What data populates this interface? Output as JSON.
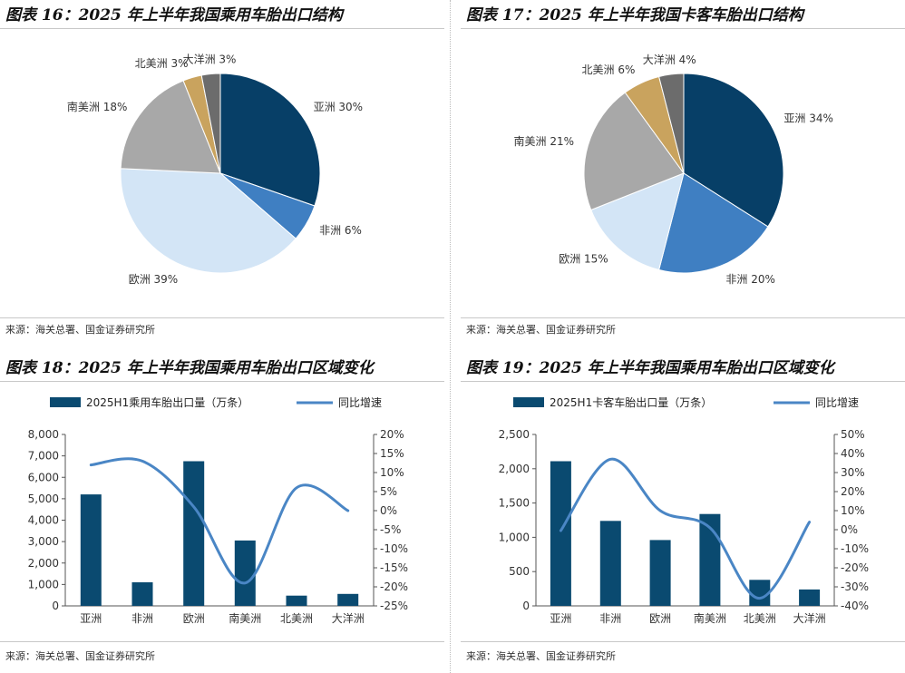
{
  "charts": [
    {
      "title": "图表 16：2025 年上半年我国乘用车胎出口结构",
      "source": "来源：海关总署、国金证券研究所",
      "chart_data": {
        "type": "pie",
        "labels": [
          "亚洲 30%",
          "非洲 6%",
          "欧洲 39%",
          "南美洲 18%",
          "北美洲 3%",
          "大洋洲 3%"
        ],
        "values": [
          30,
          6,
          39,
          18,
          3,
          3
        ],
        "colors": [
          "#073f67",
          "#3f7fc2",
          "#d3e5f6",
          "#a8a8a8",
          "#c9a35e",
          "#6c6c6c"
        ]
      }
    },
    {
      "title": "图表 17：2025 年上半年我国卡客车胎出口结构",
      "source": "来源：海关总署、国金证券研究所",
      "chart_data": {
        "type": "pie",
        "labels": [
          "亚洲 34%",
          "非洲 20%",
          "欧洲 15%",
          "南美洲 21%",
          "北美洲 6%",
          "大洋洲 4%"
        ],
        "values": [
          34,
          20,
          15,
          21,
          6,
          4
        ],
        "colors": [
          "#073f67",
          "#3f7fc2",
          "#d3e5f6",
          "#a8a8a8",
          "#c9a35e",
          "#6c6c6c"
        ]
      }
    },
    {
      "title": "图表 18：2025 年上半年我国乘用车胎出口区域变化",
      "source": "来源：海关总署、国金证券研究所",
      "chart_data": {
        "type": "bar",
        "categories": [
          "亚洲",
          "非洲",
          "欧洲",
          "南美洲",
          "北美洲",
          "大洋洲"
        ],
        "series": [
          {
            "name": "2025H1乘用车胎出口量（万条）",
            "type": "bar",
            "axis": "left",
            "color": "#0a4a70",
            "values": [
              5200,
              1100,
              6750,
              3050,
              480,
              560
            ]
          },
          {
            "name": "同比增速",
            "type": "line",
            "axis": "right",
            "color": "#4a86c5",
            "values": [
              12,
              13,
              1,
              -19,
              6,
              0
            ]
          }
        ],
        "ylim_left": [
          0,
          8000
        ],
        "ylim_right": [
          -25,
          20
        ],
        "yticks_left": [
          "0",
          "1,000",
          "2,000",
          "3,000",
          "4,000",
          "5,000",
          "6,000",
          "7,000",
          "8,000"
        ],
        "yticks_right": [
          "-25%",
          "-20%",
          "-15%",
          "-10%",
          "-5%",
          "0%",
          "5%",
          "10%",
          "15%",
          "20%"
        ]
      }
    },
    {
      "title": "图表 19：2025 年上半年我国乘用车胎出口区域变化",
      "source": "来源：海关总署、国金证券研究所",
      "chart_data": {
        "type": "bar",
        "categories": [
          "亚洲",
          "非洲",
          "欧洲",
          "南美洲",
          "北美洲",
          "大洋洲"
        ],
        "series": [
          {
            "name": "2025H1卡客车胎出口量（万条）",
            "type": "bar",
            "axis": "left",
            "color": "#0a4a70",
            "values": [
              2110,
              1240,
              960,
              1340,
              380,
              240
            ]
          },
          {
            "name": "同比增速",
            "type": "line",
            "axis": "right",
            "color": "#4a86c5",
            "values": [
              -0.5,
              37,
              10,
              1,
              -36,
              4
            ]
          }
        ],
        "ylim_left": [
          0,
          2500
        ],
        "ylim_right": [
          -40,
          50
        ],
        "yticks_left": [
          "0",
          "500",
          "1,000",
          "1,500",
          "2,000",
          "2,500"
        ],
        "yticks_right": [
          "-40%",
          "-30%",
          "-20%",
          "-10%",
          "0%",
          "10%",
          "20%",
          "30%",
          "40%",
          "50%"
        ]
      }
    }
  ]
}
